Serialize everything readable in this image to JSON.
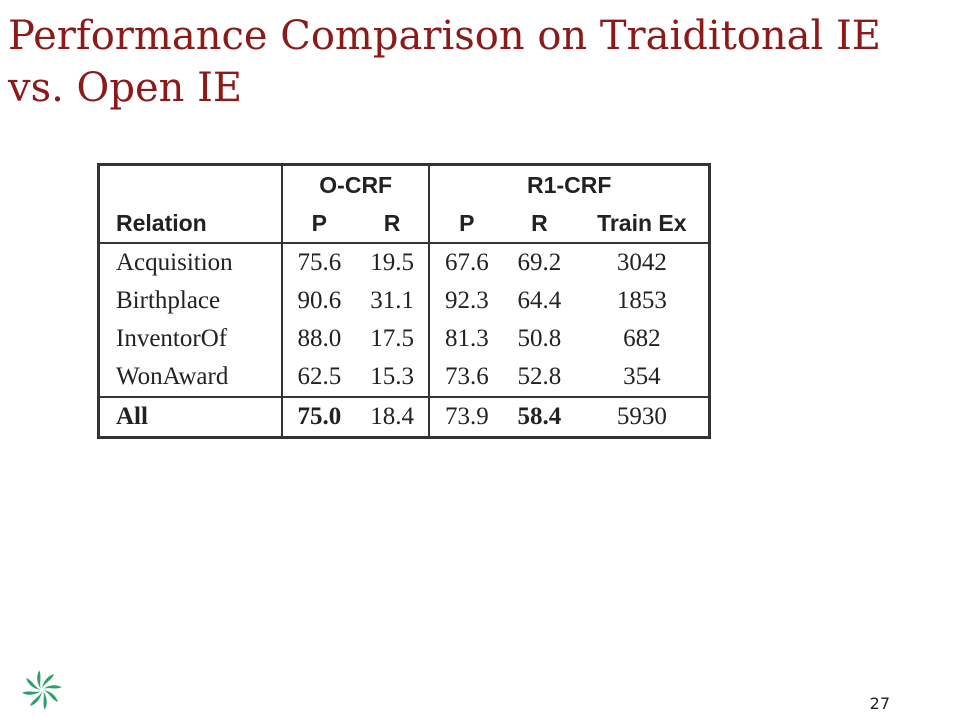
{
  "slide": {
    "title": "Performance Comparison on Traiditonal IE vs. Open IE",
    "page_number": "27",
    "logo_icon": "green-pinwheel-logo"
  },
  "table": {
    "group_headers": [
      "O-CRF",
      "R1-CRF"
    ],
    "column_headers": [
      "Relation",
      "P",
      "R",
      "P",
      "R",
      "Train Ex"
    ],
    "rows": [
      {
        "relation": "Acquisition",
        "o_p": "75.6",
        "o_r": "19.5",
        "r_p": "67.6",
        "r_r": "69.2",
        "train": "3042"
      },
      {
        "relation": "Birthplace",
        "o_p": "90.6",
        "o_r": "31.1",
        "r_p": "92.3",
        "r_r": "64.4",
        "train": "1853"
      },
      {
        "relation": "InventorOf",
        "o_p": "88.0",
        "o_r": "17.5",
        "r_p": "81.3",
        "r_r": "50.8",
        "train": "682"
      },
      {
        "relation": "WonAward",
        "o_p": "62.5",
        "o_r": "15.3",
        "r_p": "73.6",
        "r_r": "52.8",
        "train": "354"
      }
    ],
    "total_row": {
      "relation": "All",
      "o_p": "75.0",
      "o_r": "18.4",
      "r_p": "73.9",
      "r_r": "58.4",
      "train": "5930"
    }
  },
  "colors": {
    "title": "#8b1a1a",
    "logo": "#2e9e6a"
  }
}
